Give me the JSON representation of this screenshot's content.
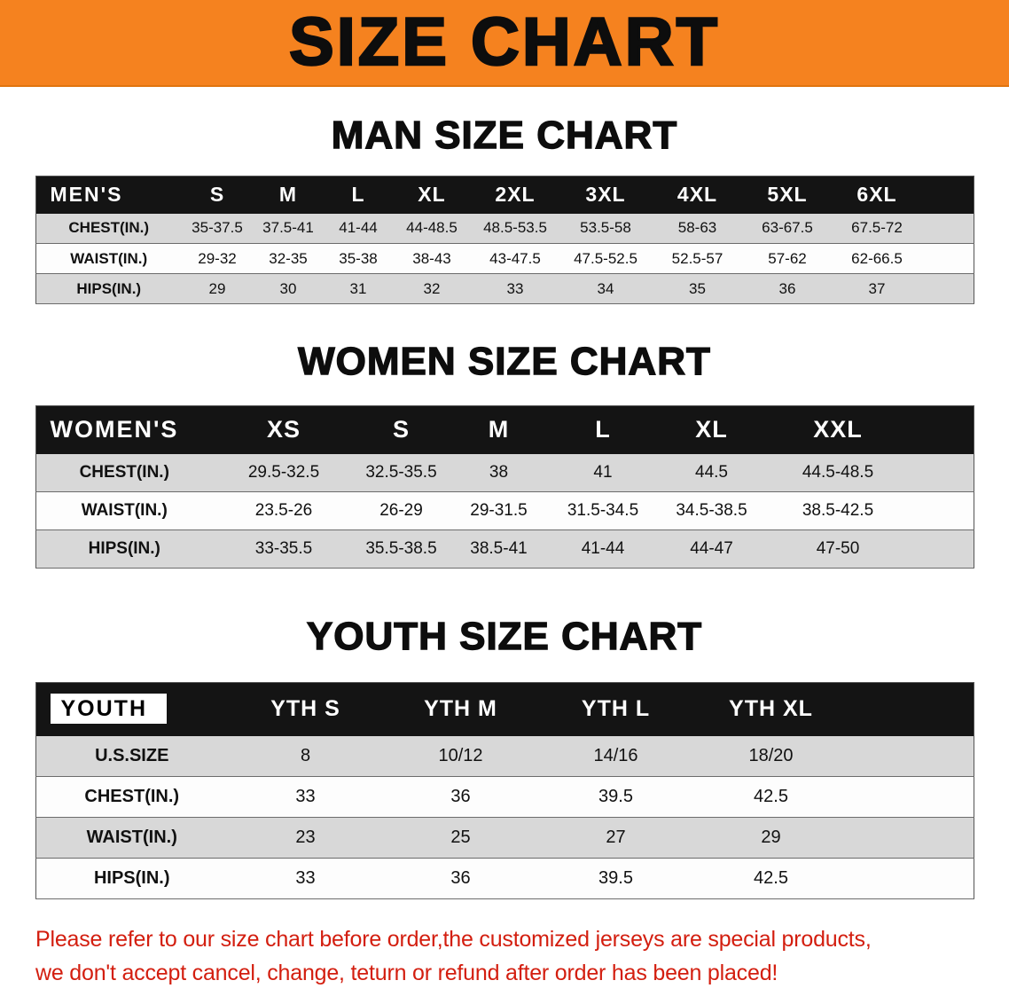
{
  "banner": {
    "title": "SIZE CHART"
  },
  "colors": {
    "banner_bg": "#f5821f",
    "table_header_bg": "#141414",
    "row_stripe": "#d8d8d8",
    "disclaimer_text": "#d31e0f"
  },
  "sections": [
    {
      "heading": "MAN SIZE CHART",
      "table": {
        "header": [
          "MEN'S",
          "S",
          "M",
          "L",
          "XL",
          "2XL",
          "3XL",
          "4XL",
          "5XL",
          "6XL"
        ],
        "rows": [
          [
            "CHEST(IN.)",
            "35-37.5",
            "37.5-41",
            "41-44",
            "44-48.5",
            "48.5-53.5",
            "53.5-58",
            "58-63",
            "63-67.5",
            "67.5-72"
          ],
          [
            "WAIST(IN.)",
            "29-32",
            "32-35",
            "35-38",
            "38-43",
            "43-47.5",
            "47.5-52.5",
            "52.5-57",
            "57-62",
            "62-66.5"
          ],
          [
            "HIPS(IN.)",
            "29",
            "30",
            "31",
            "32",
            "33",
            "34",
            "35",
            "36",
            "37"
          ]
        ]
      }
    },
    {
      "heading": "WOMEN SIZE CHART",
      "table": {
        "header": [
          "WOMEN'S",
          "XS",
          "S",
          "M",
          "L",
          "XL",
          "XXL"
        ],
        "rows": [
          [
            "CHEST(IN.)",
            "29.5-32.5",
            "32.5-35.5",
            "38",
            "41",
            "44.5",
            "44.5-48.5"
          ],
          [
            "WAIST(IN.)",
            "23.5-26",
            "26-29",
            "29-31.5",
            "31.5-34.5",
            "34.5-38.5",
            "38.5-42.5"
          ],
          [
            "HIPS(IN.)",
            "33-35.5",
            "35.5-38.5",
            "38.5-41",
            "41-44",
            "44-47",
            "47-50"
          ]
        ]
      }
    },
    {
      "heading": "YOUTH SIZE CHART",
      "table": {
        "header": [
          "YOUTH",
          "YTH S",
          "YTH M",
          "YTH L",
          "YTH XL"
        ],
        "rows": [
          [
            "U.S.SIZE",
            "8",
            "10/12",
            "14/16",
            "18/20"
          ],
          [
            "CHEST(IN.)",
            "33",
            "36",
            "39.5",
            "42.5"
          ],
          [
            "WAIST(IN.)",
            "23",
            "25",
            "27",
            "29"
          ],
          [
            "HIPS(IN.)",
            "33",
            "36",
            "39.5",
            "42.5"
          ]
        ]
      }
    }
  ],
  "disclaimer": {
    "lines": [
      "Please refer to our size chart before order,the customized jerseys are special products,",
      "we don't accept cancel, change, teturn or refund after order has been placed!"
    ]
  }
}
